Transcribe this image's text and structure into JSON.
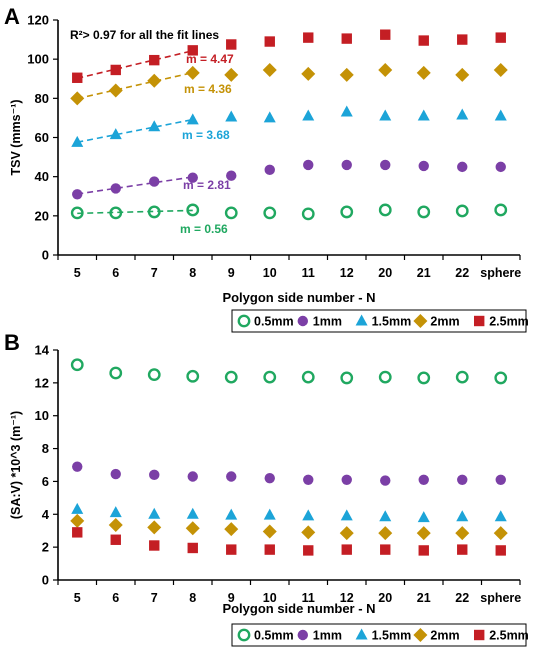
{
  "panels": {
    "a": {
      "letter": "A"
    },
    "b": {
      "letter": "B"
    }
  },
  "chart_data": [
    {
      "type": "scatter",
      "panel": "A",
      "ylabel": "TSV (mms⁻¹)",
      "xlabel": "Polygon side number - N",
      "categories": [
        "5",
        "6",
        "7",
        "8",
        "9",
        "10",
        "11",
        "12",
        "20",
        "21",
        "22",
        "sphere"
      ],
      "ylim": [
        0,
        120
      ],
      "yticks": [
        0,
        20,
        40,
        60,
        80,
        100,
        120
      ],
      "grid": false,
      "legend_position": "below",
      "annotation": "R²> 0.97 for all the fit lines",
      "series": [
        {
          "name": "0.5mm",
          "color": "#20a860",
          "marker": "open-circle",
          "values": [
            21.5,
            21.5,
            22,
            23,
            21.5,
            21.5,
            21,
            22,
            23,
            22,
            22.5,
            23
          ],
          "fit_points": 4,
          "slope_label": "m = 0.56"
        },
        {
          "name": "1mm",
          "color": "#7b3fa6",
          "marker": "circle",
          "values": [
            31,
            34,
            37.5,
            39.5,
            40.5,
            43.5,
            46,
            46,
            46,
            45.5,
            45,
            45
          ],
          "fit_points": 4,
          "slope_label": "m = 2.81"
        },
        {
          "name": "1.5mm",
          "color": "#1ca4d8",
          "marker": "triangle",
          "values": [
            57.5,
            61.5,
            65.5,
            69,
            70.5,
            70,
            71,
            73,
            71,
            71,
            71.5,
            71
          ],
          "fit_points": 4,
          "slope_label": "m = 3.68"
        },
        {
          "name": "2mm",
          "color": "#c49206",
          "marker": "diamond",
          "values": [
            80,
            84,
            89,
            93,
            92,
            94.5,
            92.5,
            92,
            94.5,
            93,
            92,
            94.5
          ],
          "fit_points": 4,
          "slope_label": "m = 4.36"
        },
        {
          "name": "2.5mm",
          "color": "#c41e24",
          "marker": "square",
          "values": [
            90.5,
            94.5,
            99.5,
            104.5,
            107.5,
            109,
            111,
            110.5,
            112.5,
            109.5,
            110,
            111
          ],
          "fit_points": 4,
          "slope_label": "m = 4.47"
        }
      ]
    },
    {
      "type": "scatter",
      "panel": "B",
      "ylabel": "(SA:V) *10^3 (m⁻¹)",
      "xlabel": "Polygon side number - N",
      "categories": [
        "5",
        "6",
        "7",
        "8",
        "9",
        "10",
        "11",
        "12",
        "20",
        "21",
        "22",
        "sphere"
      ],
      "ylim": [
        0,
        14
      ],
      "yticks": [
        0,
        2,
        4,
        6,
        8,
        10,
        12,
        14
      ],
      "grid": false,
      "legend_position": "below",
      "series": [
        {
          "name": "0.5mm",
          "color": "#20a860",
          "marker": "open-circle",
          "values": [
            13.1,
            12.6,
            12.5,
            12.4,
            12.35,
            12.35,
            12.35,
            12.3,
            12.35,
            12.3,
            12.35,
            12.3
          ]
        },
        {
          "name": "1mm",
          "color": "#7b3fa6",
          "marker": "circle",
          "values": [
            6.9,
            6.45,
            6.4,
            6.3,
            6.3,
            6.2,
            6.1,
            6.1,
            6.05,
            6.1,
            6.1,
            6.1
          ]
        },
        {
          "name": "1.5mm",
          "color": "#1ca4d8",
          "marker": "triangle",
          "values": [
            4.3,
            4.1,
            4.0,
            4.0,
            3.95,
            3.95,
            3.9,
            3.9,
            3.85,
            3.8,
            3.85,
            3.85
          ]
        },
        {
          "name": "2mm",
          "color": "#c49206",
          "marker": "diamond",
          "values": [
            3.6,
            3.35,
            3.2,
            3.15,
            3.1,
            2.95,
            2.9,
            2.85,
            2.85,
            2.85,
            2.85,
            2.85
          ]
        },
        {
          "name": "2.5mm",
          "color": "#c41e24",
          "marker": "square",
          "values": [
            2.9,
            2.45,
            2.1,
            1.95,
            1.85,
            1.85,
            1.8,
            1.85,
            1.85,
            1.8,
            1.85,
            1.8
          ]
        }
      ]
    }
  ]
}
